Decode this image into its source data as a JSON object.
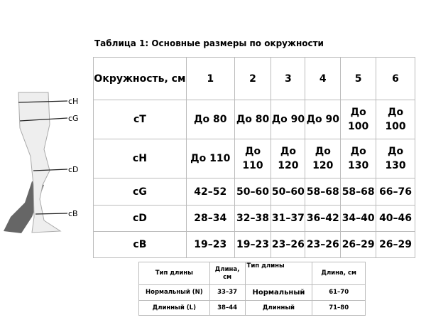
{
  "title": "Таблица 1: Основные размеры по окружности",
  "figure": {
    "labels": [
      "cH",
      "cG",
      "cD",
      "cB"
    ]
  },
  "main_table": {
    "header": [
      "Окружность, см",
      "1",
      "2",
      "3",
      "4",
      "5",
      "6"
    ],
    "rows": [
      [
        "cT",
        "До 80",
        "До 80",
        "До 90",
        "До 90",
        "До 100",
        "До 100"
      ],
      [
        "cH",
        "До 110",
        "До 110",
        "До 120",
        "До 120",
        "До 130",
        "До 130"
      ],
      [
        "cG",
        "42–52",
        "50–60",
        "50–60",
        "58–68",
        "58–68",
        "66–76"
      ],
      [
        "cD",
        "28–34",
        "32–38",
        "31–37",
        "36–42",
        "34–40",
        "40–46"
      ],
      [
        "cB",
        "19–23",
        "19–23",
        "23–26",
        "23–26",
        "26–29",
        "26–29"
      ]
    ]
  },
  "length_table": {
    "header": [
      "Тип длины",
      "Длина, см",
      "Тип длины",
      "Длина, см"
    ],
    "rows": [
      [
        "Нормальный (N)",
        "33–37",
        "Нормальный",
        "61–70"
      ],
      [
        "Длинный (L)",
        "38–44",
        "Длинный",
        "71–80"
      ]
    ]
  }
}
